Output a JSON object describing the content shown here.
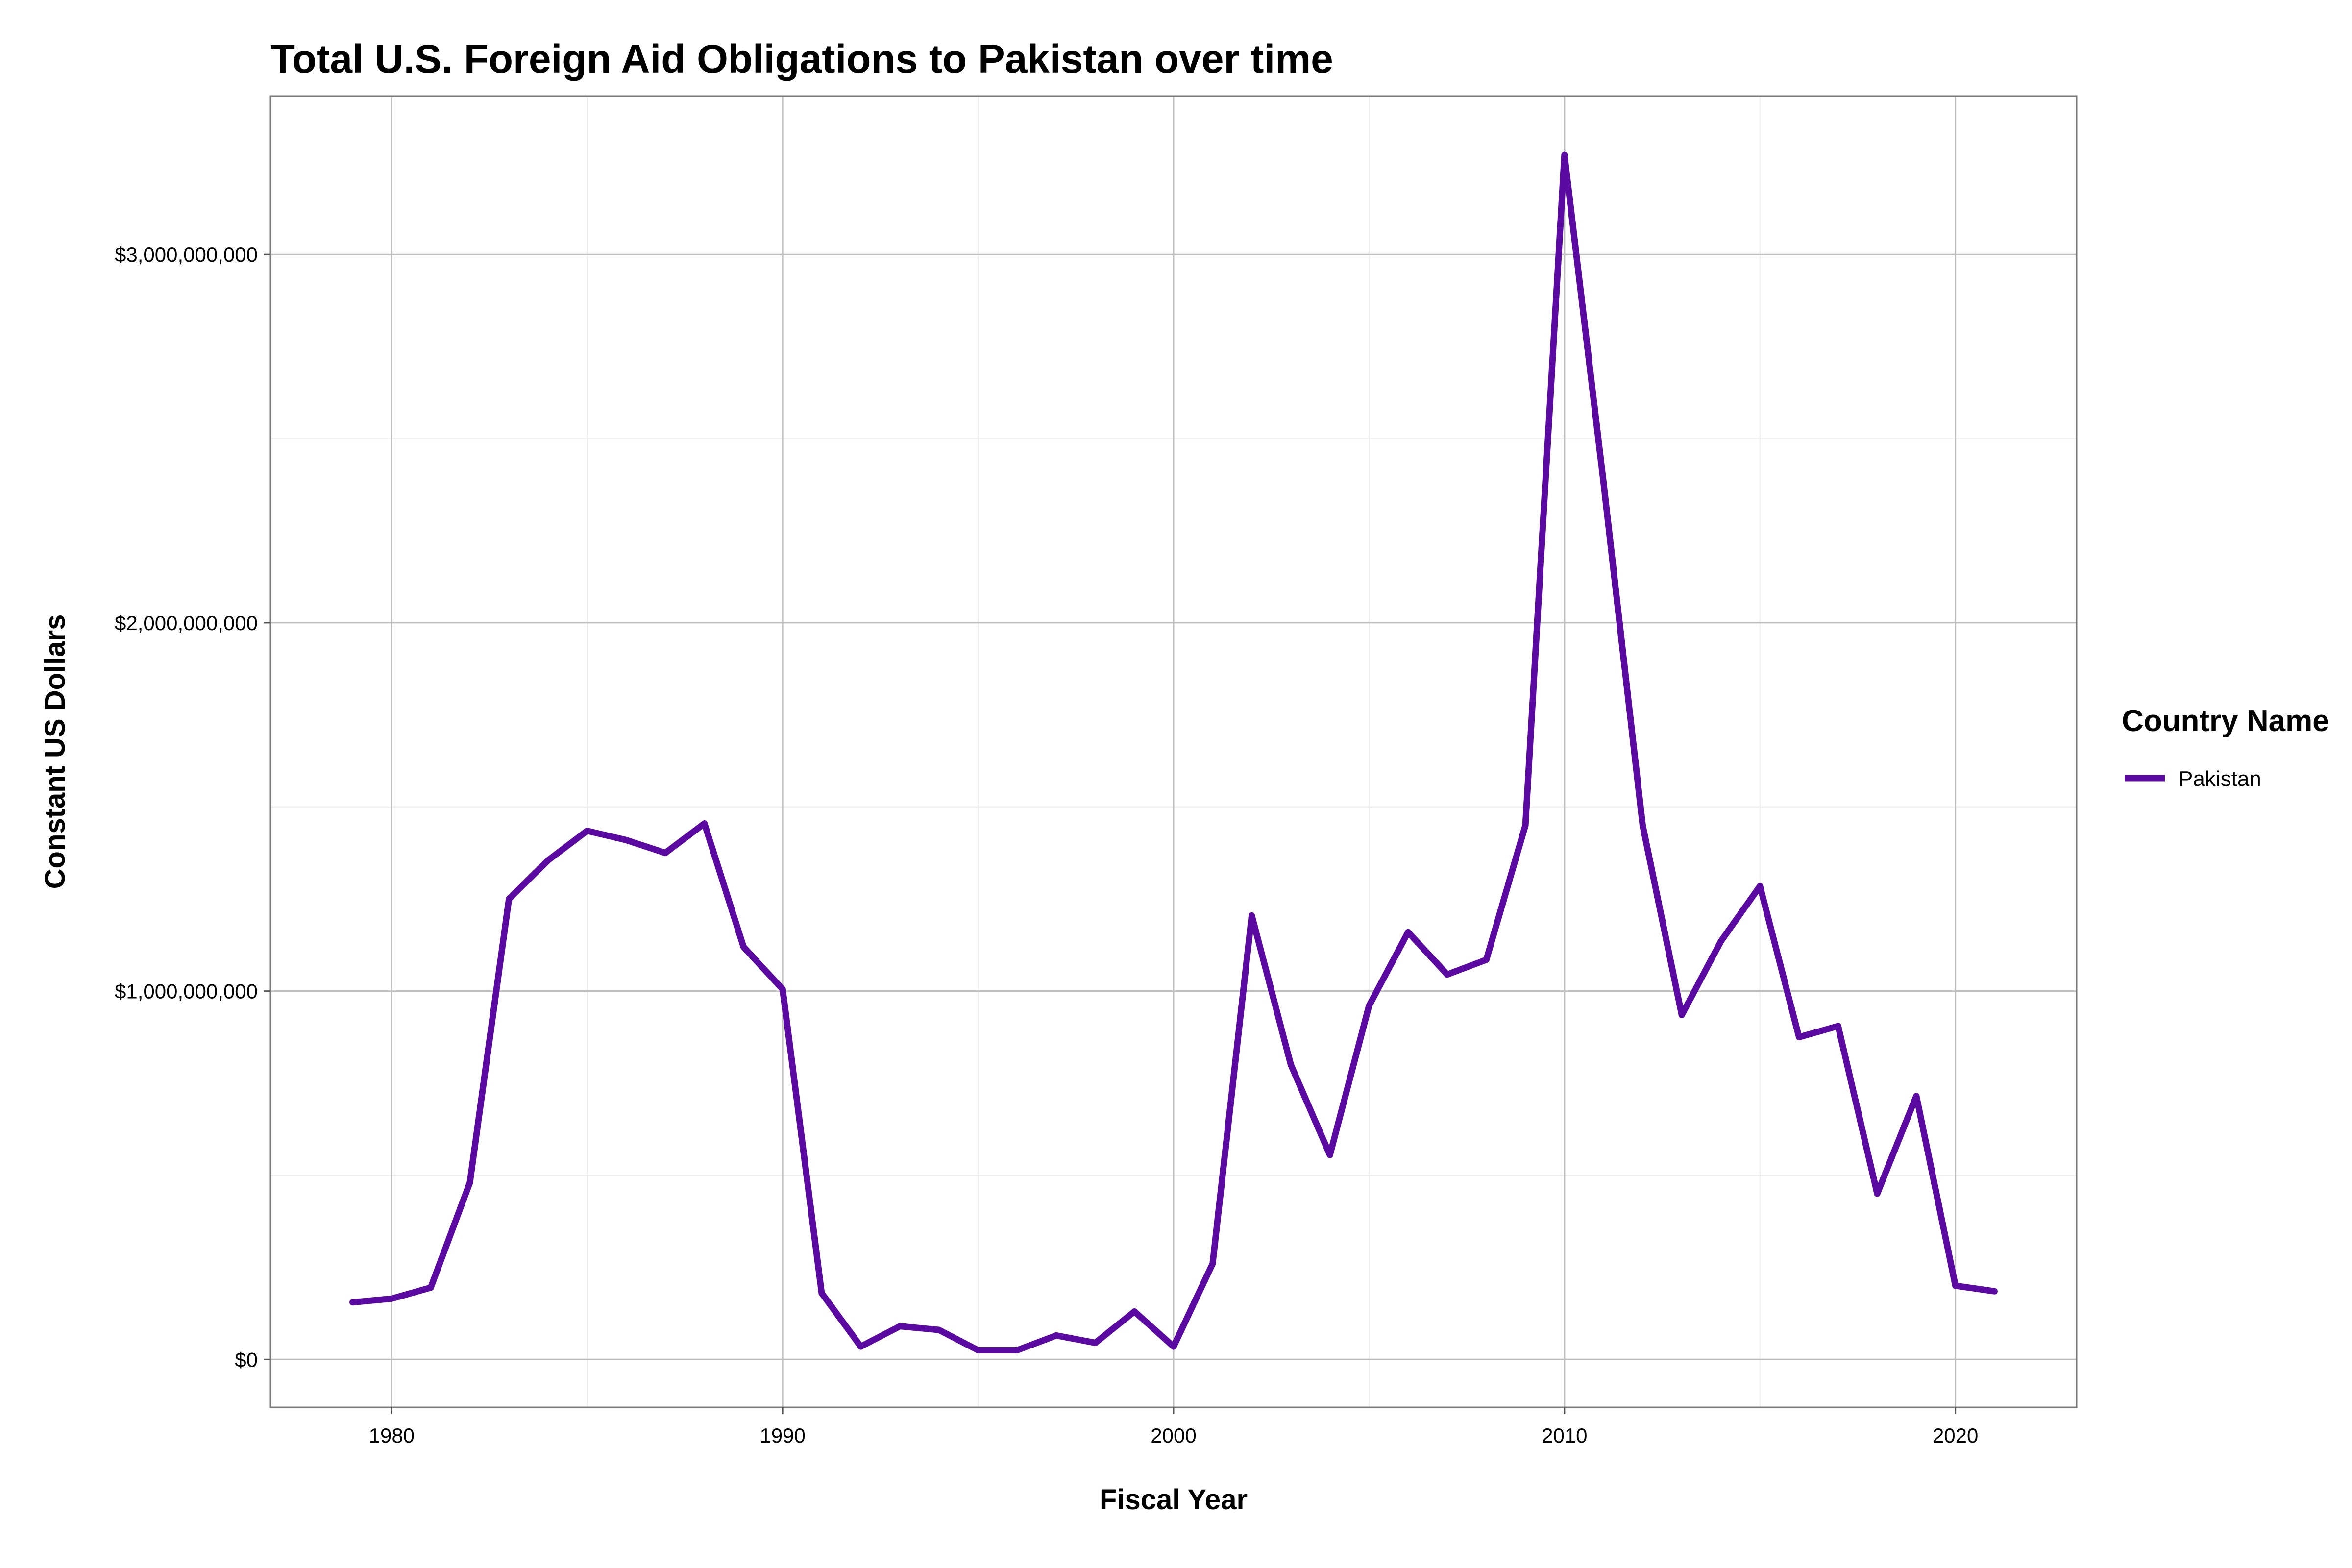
{
  "chart_data": {
    "type": "line",
    "title": "Total U.S. Foreign Aid Obligations to Pakistan over time",
    "xlabel": "Fiscal Year",
    "ylabel": "Constant US Dollars",
    "xlim": [
      1976.9,
      2023.1
    ],
    "ylim": [
      -130000000,
      3430000000
    ],
    "x_ticks": [
      1980,
      1990,
      2000,
      2010,
      2020
    ],
    "x_tick_labels": [
      "1980",
      "1990",
      "2000",
      "2010",
      "2020"
    ],
    "y_ticks": [
      0,
      1000000000,
      2000000000,
      3000000000
    ],
    "y_tick_labels": [
      "$0",
      "$1,000,000,000",
      "$2,000,000,000",
      "$3,000,000,000"
    ],
    "grid": true,
    "legend": {
      "title": "Country Name",
      "placement": "right"
    },
    "colors": {
      "Pakistan": "#5B0AA1"
    },
    "series": [
      {
        "name": "Pakistan",
        "x": [
          1979,
          1980,
          1981,
          1982,
          1983,
          1984,
          1985,
          1986,
          1987,
          1988,
          1989,
          1990,
          1991,
          1992,
          1993,
          1994,
          1995,
          1996,
          1997,
          1998,
          1999,
          2000,
          2001,
          2002,
          2003,
          2004,
          2005,
          2006,
          2007,
          2008,
          2009,
          2010,
          2011,
          2012,
          2013,
          2014,
          2015,
          2016,
          2017,
          2018,
          2019,
          2020,
          2021
        ],
        "y": [
          155000000,
          165000000,
          195000000,
          480000000,
          1250000000,
          1355000000,
          1435000000,
          1410000000,
          1375000000,
          1455000000,
          1120000000,
          1005000000,
          180000000,
          35000000,
          90000000,
          80000000,
          25000000,
          25000000,
          65000000,
          45000000,
          130000000,
          35000000,
          260000000,
          1205000000,
          800000000,
          555000000,
          960000000,
          1160000000,
          1045000000,
          1085000000,
          1450000000,
          3270000000,
          2380000000,
          1450000000,
          935000000,
          1135000000,
          1285000000,
          875000000,
          905000000,
          450000000,
          715000000,
          200000000,
          185000000
        ]
      }
    ]
  }
}
